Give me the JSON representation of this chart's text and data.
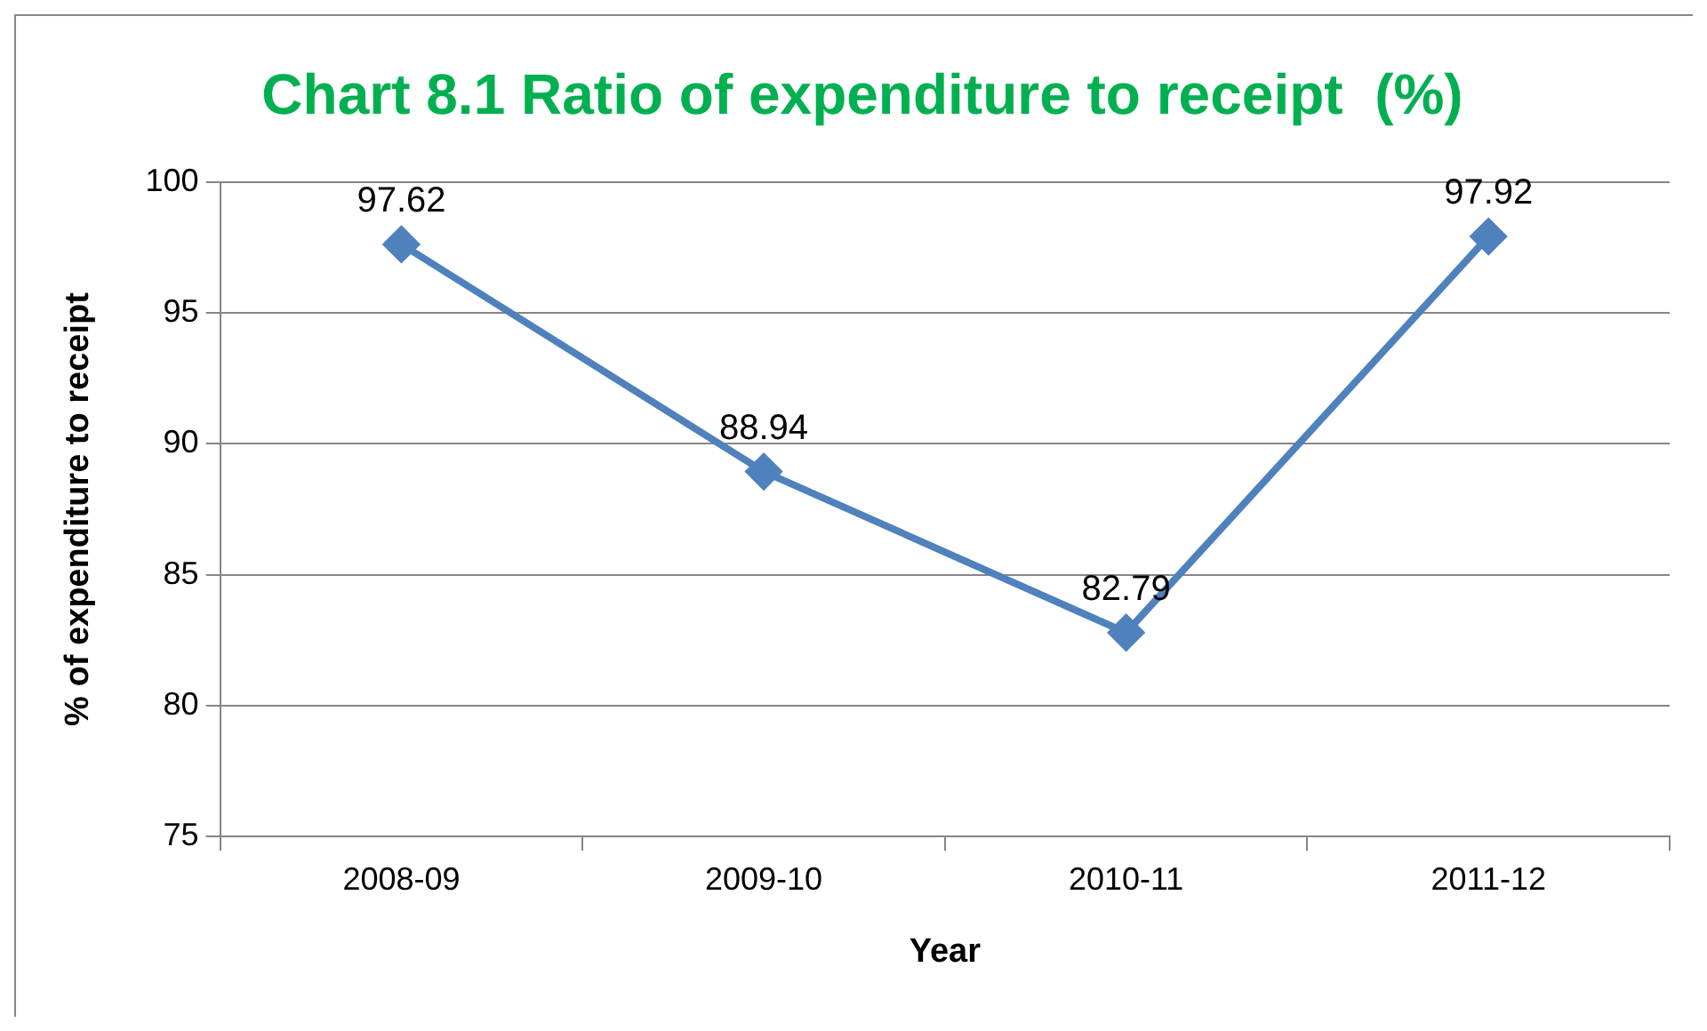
{
  "chart_data": {
    "type": "line",
    "title": "Chart 8.1 Ratio of expenditure to receipt  (%)",
    "xlabel": "Year",
    "ylabel": "% of expenditure to receipt",
    "categories": [
      "2008-09",
      "2009-10",
      "2010-11",
      "2011-12"
    ],
    "series": [
      {
        "color": "#4f81bd",
        "values": [
          97.62,
          88.94,
          82.79,
          97.92
        ]
      }
    ],
    "ylim": [
      75,
      100
    ],
    "yticks": [
      75,
      80,
      85,
      90,
      95,
      100
    ],
    "grid": "y",
    "legend": false,
    "marker": "diamond",
    "line_style": "solid",
    "data_labels": true
  }
}
